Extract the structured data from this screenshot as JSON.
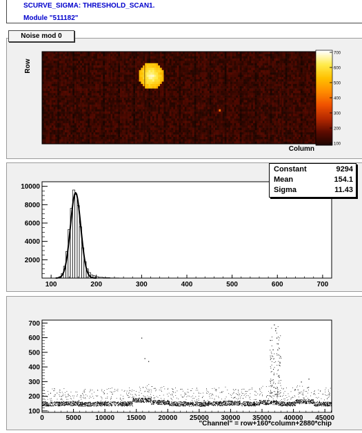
{
  "header": {
    "title": "SCURVE_SIGMA: THRESHOLD_SCAN1.",
    "module": "Module \"511182\""
  },
  "tab": {
    "label": "Noise mod 0"
  },
  "stats": {
    "rows": [
      {
        "key": "Constant",
        "value": "9294"
      },
      {
        "key": "Mean",
        "value": "154.1"
      },
      {
        "key": "Sigma",
        "value": "11.43"
      }
    ]
  },
  "colors": {
    "header_text": "#0000cc",
    "frame_bg": "#f0f0f0"
  },
  "chart_data": [
    {
      "type": "heatmap",
      "title": "",
      "xlabel": "Column",
      "ylabel": "Row",
      "colorbar_ticks": [
        100,
        200,
        300,
        400,
        500,
        600,
        700
      ],
      "zlim": [
        100,
        700
      ],
      "palette": [
        "#1a0500",
        "#5a0a00",
        "#b42800",
        "#ee5000",
        "#ff8c00",
        "#ffc000",
        "#ffeb4b",
        "#ffffff"
      ],
      "hotspots": [
        {
          "region": "upper-left-center",
          "max_value": 700
        },
        {
          "region": "lower-middle",
          "max_value": 400
        }
      ]
    },
    {
      "type": "histogram",
      "title": "",
      "xlabel": "",
      "ylabel": "",
      "xlim": [
        80,
        720
      ],
      "ylim": [
        0,
        10500
      ],
      "x_ticks": [
        100,
        200,
        300,
        400,
        500,
        600,
        700
      ],
      "y_ticks": [
        2000,
        4000,
        6000,
        8000,
        10000
      ],
      "fit": {
        "function": "gaussian",
        "constant": 9294,
        "mean": 154.1,
        "sigma": 11.43
      },
      "bins": {
        "x": [
          120,
          125,
          130,
          135,
          140,
          145,
          150,
          155,
          160,
          165,
          170,
          175,
          180,
          185,
          190,
          195,
          200,
          210,
          220,
          240
        ],
        "values": [
          150,
          500,
          1300,
          2900,
          5300,
          7600,
          9600,
          9100,
          7900,
          5600,
          3300,
          1800,
          1000,
          600,
          350,
          250,
          150,
          90,
          50,
          20
        ]
      }
    },
    {
      "type": "scatter",
      "title": "",
      "xlabel": "\"Channel\" = row+160*column+2880*chip",
      "ylabel": "",
      "xlim": [
        0,
        46080
      ],
      "ylim": [
        90,
        720
      ],
      "x_ticks": [
        0,
        5000,
        10000,
        15000,
        20000,
        25000,
        30000,
        35000,
        40000,
        45000
      ],
      "y_ticks": [
        100,
        200,
        300,
        400,
        500,
        600,
        700
      ],
      "chip_baselines": {
        "x": [
          1440,
          4320,
          7200,
          10080,
          12960,
          15840,
          18720,
          21600,
          24480,
          27360,
          30240,
          33120,
          36000,
          38880,
          41760,
          44640
        ],
        "values": [
          150,
          152,
          148,
          150,
          150,
          175,
          160,
          150,
          148,
          152,
          155,
          150,
          160,
          150,
          165,
          150
        ]
      },
      "outliers": {
        "x": [
          15800,
          16300,
          16900,
          36900,
          37100,
          37300,
          37500,
          36700,
          37800,
          41200,
          42400
        ],
        "values": [
          600,
          460,
          440,
          690,
          650,
          600,
          560,
          520,
          430,
          300,
          320
        ]
      }
    }
  ]
}
